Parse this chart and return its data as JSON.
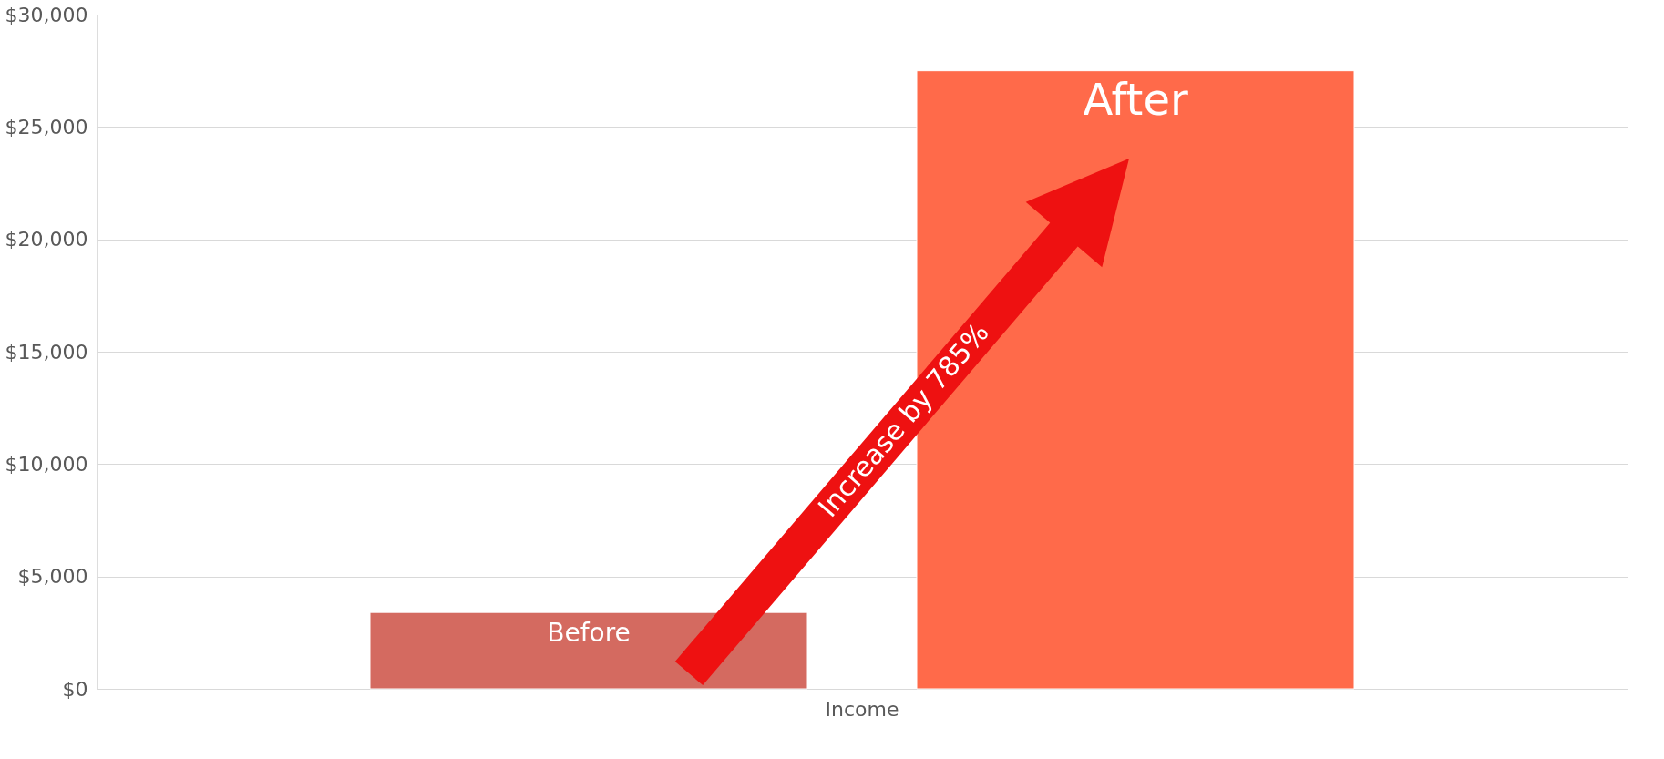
{
  "chart_data": {
    "type": "bar",
    "categories": [
      "Income"
    ],
    "series": [
      {
        "name": "Before",
        "color": "#d46a60",
        "values": [
          3400
        ]
      },
      {
        "name": "After",
        "color": "#ff6a4a",
        "values": [
          27500
        ]
      }
    ],
    "ylim": [
      0,
      30000
    ],
    "yticks": [
      {
        "value": 0,
        "label": "$0"
      },
      {
        "value": 5000,
        "label": "$5,000"
      },
      {
        "value": 10000,
        "label": "$10,000"
      },
      {
        "value": 15000,
        "label": "$15,000"
      },
      {
        "value": 20000,
        "label": "$20,000"
      },
      {
        "value": 25000,
        "label": "$25,000"
      },
      {
        "value": 30000,
        "label": "$30,000"
      }
    ],
    "grid": "y",
    "legend": false,
    "annotations": [
      "Increase by 785%"
    ]
  }
}
